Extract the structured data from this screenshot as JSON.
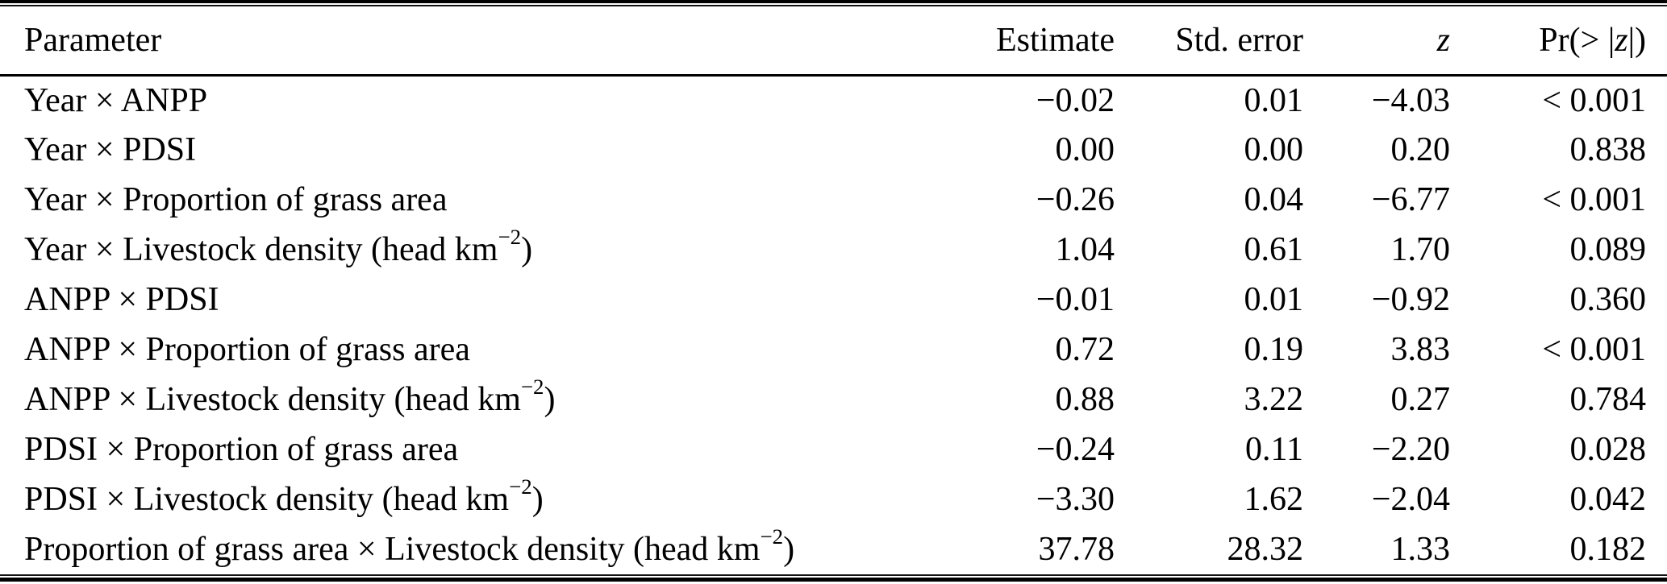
{
  "table": {
    "colors": {
      "text": "#000000",
      "rule": "#000000",
      "background": "#ffffff"
    },
    "columns": [
      {
        "id": "parameter",
        "align": "left",
        "label": [
          {
            "t": "Parameter"
          }
        ]
      },
      {
        "id": "estimate",
        "align": "right",
        "label": [
          {
            "t": "Estimate"
          }
        ]
      },
      {
        "id": "std-error",
        "align": "right",
        "label": [
          {
            "t": "Std. error"
          }
        ]
      },
      {
        "id": "z",
        "align": "right",
        "label": [
          {
            "i": "z"
          }
        ]
      },
      {
        "id": "pr-z",
        "align": "right",
        "label": [
          {
            "t": "Pr(> |"
          },
          {
            "i": "z"
          },
          {
            "t": "|)"
          }
        ]
      }
    ],
    "rows": [
      {
        "parameter": [
          {
            "t": "Year × ANPP"
          }
        ],
        "estimate": "−0.02",
        "std_error": "0.01",
        "z": "−4.03",
        "p": "< 0.001"
      },
      {
        "parameter": [
          {
            "t": "Year × PDSI"
          }
        ],
        "estimate": "0.00",
        "std_error": "0.00",
        "z": "0.20",
        "p": "0.838"
      },
      {
        "parameter": [
          {
            "t": "Year × Proportion of grass area"
          }
        ],
        "estimate": "−0.26",
        "std_error": "0.04",
        "z": "−6.77",
        "p": "< 0.001"
      },
      {
        "parameter": [
          {
            "t": "Year × Livestock density (head km"
          },
          {
            "sup": "−2"
          },
          {
            "t": ")"
          }
        ],
        "estimate": "1.04",
        "std_error": "0.61",
        "z": "1.70",
        "p": "0.089"
      },
      {
        "parameter": [
          {
            "t": "ANPP × PDSI"
          }
        ],
        "estimate": "−0.01",
        "std_error": "0.01",
        "z": "−0.92",
        "p": "0.360"
      },
      {
        "parameter": [
          {
            "t": "ANPP × Proportion of grass area"
          }
        ],
        "estimate": "0.72",
        "std_error": "0.19",
        "z": "3.83",
        "p": "< 0.001"
      },
      {
        "parameter": [
          {
            "t": "ANPP × Livestock density (head km"
          },
          {
            "sup": "−2"
          },
          {
            "t": ")"
          }
        ],
        "estimate": "0.88",
        "std_error": "3.22",
        "z": "0.27",
        "p": "0.784"
      },
      {
        "parameter": [
          {
            "t": "PDSI × Proportion of grass area"
          }
        ],
        "estimate": "−0.24",
        "std_error": "0.11",
        "z": "−2.20",
        "p": "0.028"
      },
      {
        "parameter": [
          {
            "t": "PDSI × Livestock density (head km"
          },
          {
            "sup": "−2"
          },
          {
            "t": ")"
          }
        ],
        "estimate": "−3.30",
        "std_error": "1.62",
        "z": "−2.04",
        "p": "0.042"
      },
      {
        "parameter": [
          {
            "t": "Proportion of grass area × Livestock density (head km"
          },
          {
            "sup": "−2"
          },
          {
            "t": ")"
          }
        ],
        "estimate": "37.78",
        "std_error": "28.32",
        "z": "1.33",
        "p": "0.182"
      }
    ]
  }
}
